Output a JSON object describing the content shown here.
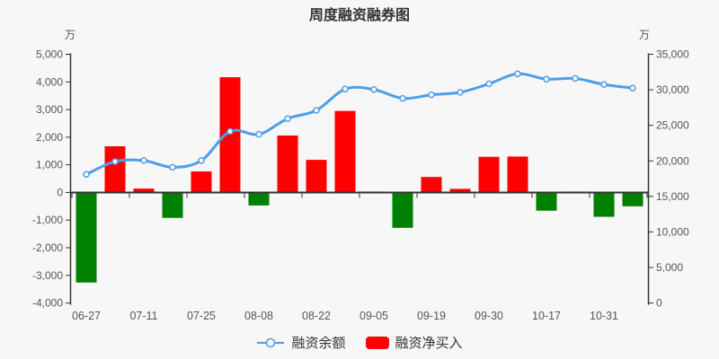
{
  "title": "周度融资融券图",
  "legend": {
    "line_series_label": "融资余额",
    "bar_series_label": "融资净买入"
  },
  "colors": {
    "background": "#f7f7f7",
    "bar_positive": "#ff0000",
    "bar_negative": "#008000",
    "line": "#4d9eeb",
    "marker_fill": "#ffffff",
    "axis_line": "#333333",
    "axis_text": "#555555",
    "title_text": "#333333"
  },
  "chart_data": {
    "type": "bar",
    "title": "周度融资融券图",
    "xlabel": "",
    "ylabel_left": "万",
    "ylabel_right": "万",
    "grid": false,
    "legend_position": "bottom",
    "left_axis": {
      "name": "万",
      "min": -4000,
      "max": 5000,
      "ticks": [
        {
          "v": 5000,
          "t": "5,000"
        },
        {
          "v": 4000,
          "t": "4,000"
        },
        {
          "v": 3000,
          "t": "3,000"
        },
        {
          "v": 2000,
          "t": "2,000"
        },
        {
          "v": 1000,
          "t": "1,000"
        },
        {
          "v": 0,
          "t": "0"
        },
        {
          "v": -1000,
          "t": "-1,000"
        },
        {
          "v": -2000,
          "t": "-2,000"
        },
        {
          "v": -3000,
          "t": "-3,000"
        },
        {
          "v": -4000,
          "t": "-4,000"
        }
      ]
    },
    "right_axis": {
      "name": "万",
      "min": 0,
      "max": 35000,
      "ticks": [
        {
          "v": 35000,
          "t": "35,000"
        },
        {
          "v": 30000,
          "t": "30,000"
        },
        {
          "v": 25000,
          "t": "25,000"
        },
        {
          "v": 20000,
          "t": "20,000"
        },
        {
          "v": 15000,
          "t": "15,000"
        },
        {
          "v": 10000,
          "t": "10,000"
        },
        {
          "v": 5000,
          "t": "5,000"
        },
        {
          "v": 0,
          "t": "0"
        }
      ]
    },
    "categories": [
      "06-27",
      "",
      "07-11",
      "",
      "07-25",
      "",
      "08-08",
      "",
      "08-22",
      "",
      "09-05",
      "",
      "09-19",
      "",
      "09-30",
      "",
      "10-17",
      "",
      "10-31",
      ""
    ],
    "series": [
      {
        "name": "融资净买入",
        "type": "bar",
        "axis": "left",
        "unit": "万",
        "values": [
          -3260,
          1670,
          140,
          -920,
          760,
          4170,
          -470,
          2060,
          1180,
          2950,
          30,
          -1280,
          560,
          130,
          1290,
          1300,
          -660,
          20,
          -880,
          -500
        ]
      },
      {
        "name": "融资余额",
        "type": "line",
        "axis": "right",
        "unit": "万",
        "values": [
          18100,
          19900,
          20050,
          19100,
          20050,
          24150,
          23750,
          25950,
          27100,
          30100,
          30050,
          28800,
          29300,
          29650,
          30850,
          32250,
          31500,
          31600,
          30750,
          30250
        ]
      }
    ]
  }
}
